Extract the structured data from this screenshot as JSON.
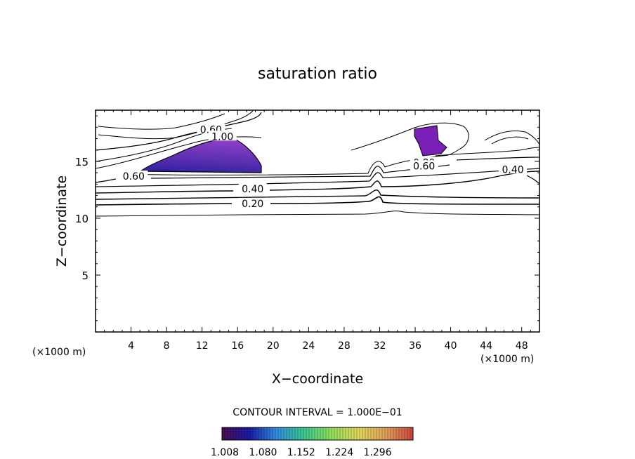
{
  "chart_data": {
    "type": "contour",
    "title": "saturation ratio",
    "xlabel": "X−coordinate",
    "ylabel": "Z−coordinate",
    "x_unit_left": "(×1000 m)",
    "x_unit_right": "(×1000 m)",
    "xlim": [
      0,
      50
    ],
    "ylim": [
      0,
      19.5
    ],
    "x_ticks": [
      4,
      8,
      12,
      16,
      20,
      24,
      28,
      32,
      36,
      40,
      44,
      48
    ],
    "y_ticks": [
      5,
      10,
      15
    ],
    "contour_interval_label": "CONTOUR INTERVAL = 1.000E−01",
    "contour_labels": [
      {
        "text": "0.20",
        "x": 17.7,
        "y": 11.3
      },
      {
        "text": "0.40",
        "x": 17.7,
        "y": 12.6
      },
      {
        "text": "0.40",
        "x": 47.0,
        "y": 14.3
      },
      {
        "text": "0.60",
        "x": 4.3,
        "y": 13.7
      },
      {
        "text": "0.60",
        "x": 13.0,
        "y": 17.8
      },
      {
        "text": "1.00",
        "x": 14.3,
        "y": 17.2
      },
      {
        "text": "0.80",
        "x": 37.0,
        "y": 14.9
      },
      {
        "text": "0.60",
        "x": 37.0,
        "y": 14.6
      }
    ],
    "filled_regions": [
      {
        "name": "region-1",
        "x_range": [
          6.5,
          18.9
        ],
        "z_range": [
          14.3,
          17.3
        ],
        "min": 1.008,
        "max": 1.296
      },
      {
        "name": "region-2",
        "x_range": [
          36.0,
          39.5
        ],
        "z_range": [
          15.8,
          18.5
        ],
        "min": 1.008,
        "max": 1.08
      }
    ],
    "colorbar": {
      "ticks": [
        "1.008",
        "1.080",
        "1.152",
        "1.224",
        "1.296"
      ],
      "colors": [
        "#4a0e4e",
        "#1b1aa8",
        "#2f8fe0",
        "#39c98f",
        "#8fe05a",
        "#e0d85a",
        "#e0a25a",
        "#d0453b"
      ]
    }
  }
}
